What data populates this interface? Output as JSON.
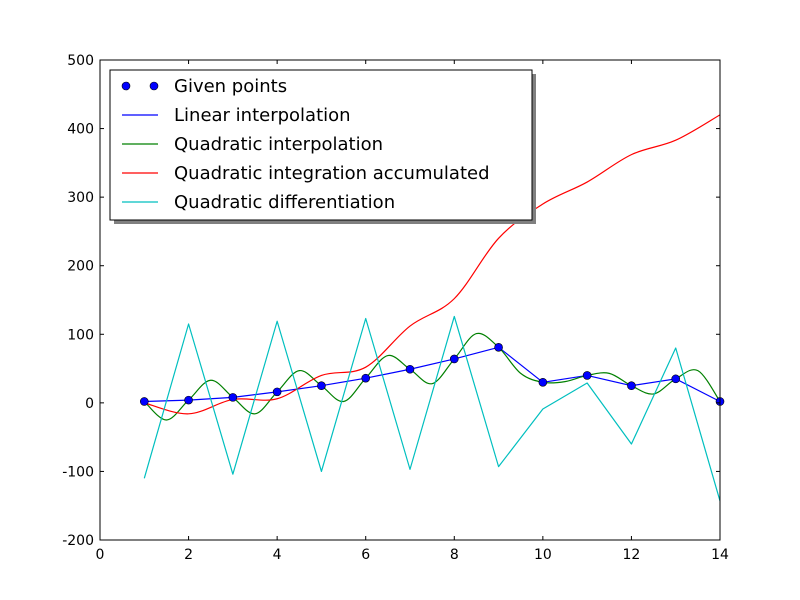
{
  "chart_data": {
    "type": "line",
    "title": "",
    "xlabel": "",
    "ylabel": "",
    "xlim": [
      0,
      14
    ],
    "ylim": [
      -200,
      500
    ],
    "xticks": [
      0,
      2,
      4,
      6,
      8,
      10,
      12,
      14
    ],
    "yticks": [
      -200,
      -100,
      0,
      100,
      200,
      300,
      400,
      500
    ],
    "grid": false,
    "legend_position": "top-left",
    "series": [
      {
        "name": "Given points",
        "style": "markers",
        "color": "#0000ff",
        "x": [
          1,
          2,
          3,
          4,
          5,
          6,
          7,
          8,
          9,
          10,
          11,
          12,
          13,
          14
        ],
        "y": [
          2,
          4,
          8,
          16,
          25,
          36,
          49,
          64,
          81,
          30,
          40,
          25,
          35,
          2
        ]
      },
      {
        "name": "Linear interpolation",
        "style": "line",
        "color": "#0000ff",
        "x": [
          1,
          2,
          3,
          4,
          5,
          6,
          7,
          8,
          9,
          10,
          11,
          12,
          13,
          14
        ],
        "y": [
          2,
          4,
          8,
          16,
          25,
          36,
          49,
          64,
          81,
          30,
          40,
          25,
          35,
          2
        ]
      },
      {
        "name": "Quadratic interpolation",
        "style": "line",
        "color": "#008000",
        "x": [
          1,
          1.5,
          2,
          2.5,
          3,
          3.5,
          4,
          4.5,
          5,
          5.5,
          6,
          6.5,
          7,
          7.5,
          8,
          8.5,
          9,
          9.5,
          10,
          10.5,
          11,
          11.5,
          12,
          12.5,
          13,
          13.5,
          14
        ],
        "y": [
          2,
          -25,
          4,
          33,
          8,
          -16,
          16,
          47,
          25,
          2,
          36,
          69,
          49,
          28,
          64,
          101,
          81,
          43,
          30,
          31,
          40,
          43,
          25,
          13,
          35,
          47,
          2
        ]
      },
      {
        "name": "Quadratic integration accumulated",
        "style": "line",
        "color": "#ff0000",
        "x": [
          1,
          2,
          3,
          4,
          5,
          6,
          7,
          8,
          9,
          10,
          11,
          12,
          13,
          14
        ],
        "y": [
          0,
          -16,
          5,
          6,
          40,
          52,
          112,
          152,
          240,
          290,
          322,
          362,
          383,
          420
        ]
      },
      {
        "name": "Quadratic differentiation",
        "style": "line",
        "color": "#00bfbf",
        "x": [
          1,
          2,
          3,
          4,
          5,
          6,
          7,
          8,
          9,
          10,
          11,
          12,
          13,
          14
        ],
        "y": [
          -110,
          115,
          -104,
          119,
          -100,
          123,
          -97,
          126,
          -93,
          -9,
          29,
          -60,
          80,
          -143
        ]
      }
    ]
  }
}
